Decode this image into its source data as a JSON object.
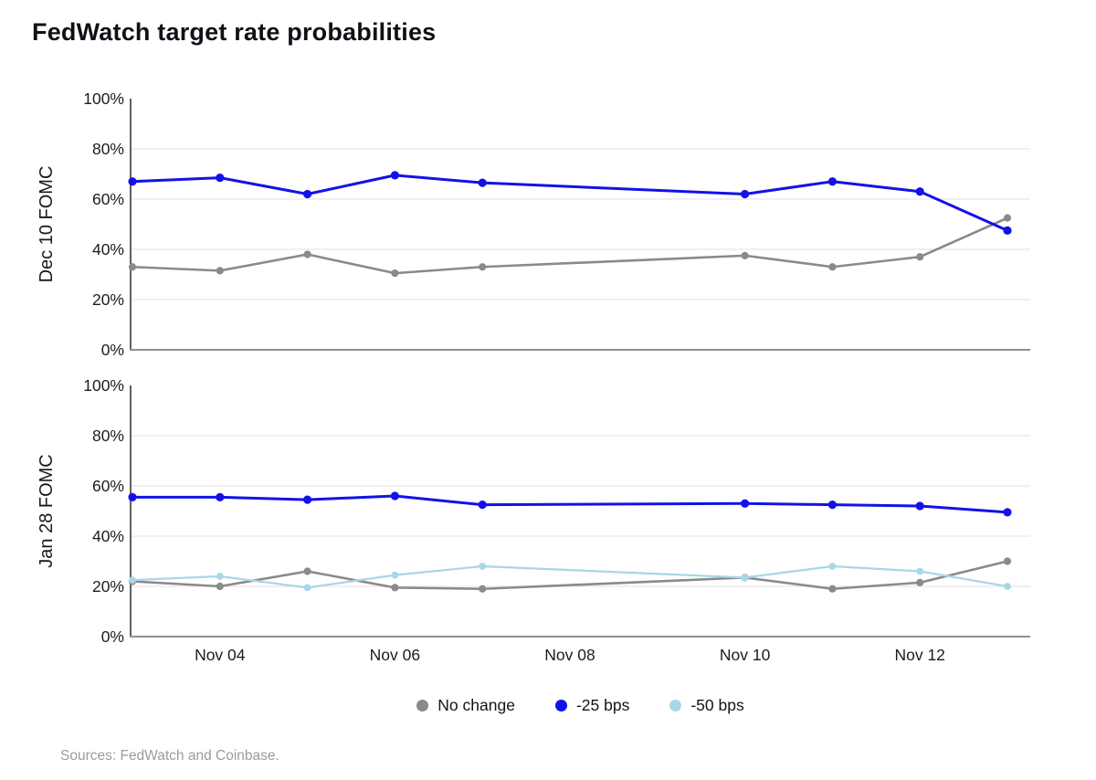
{
  "title": "FedWatch target rate probabilities",
  "source": "Sources: FedWatch and Coinbase.",
  "colors": {
    "no_change": "#8a8a8a",
    "minus_25bps": "#1212e8",
    "minus_50bps": "#a9d6e8",
    "grid": "#e8e8e8",
    "x_axis_line": "#8f8f8f",
    "y_axis_line": "#616161",
    "tick_text": "#1c1c1c",
    "title_text": "#0e1117",
    "source_text": "#9b9b9b"
  },
  "legend": {
    "items": [
      {
        "id": "no-change",
        "label": "No change",
        "color": "#8a8a8a"
      },
      {
        "id": "minus-25bps",
        "label": "-25 bps",
        "color": "#1212e8"
      },
      {
        "id": "minus-50bps",
        "label": "-50 bps",
        "color": "#a9d6e8"
      }
    ]
  },
  "x_axis": {
    "tick_labels": [
      "Nov 04",
      "Nov 06",
      "Nov 08",
      "Nov 10",
      "Nov 12"
    ],
    "tick_day_offsets": [
      1,
      3,
      5,
      7,
      9
    ]
  },
  "chart_data": [
    {
      "type": "line",
      "panel_id": "dec10-fomc",
      "panel_label": "Dec 10 FOMC",
      "x_dates": [
        "Nov 03",
        "Nov 04",
        "Nov 05",
        "Nov 06",
        "Nov 07",
        "Nov 10",
        "Nov 11",
        "Nov 12",
        "Nov 13"
      ],
      "x_day_offsets": [
        0,
        1,
        2,
        3,
        4,
        7,
        8,
        9,
        10
      ],
      "ylim": [
        0,
        100
      ],
      "yticks": [
        "0%",
        "20%",
        "40%",
        "60%",
        "80%",
        "100%"
      ],
      "grid": true,
      "series": [
        {
          "name": "No change",
          "color": "#8a8a8a",
          "values": [
            33,
            31.5,
            38,
            30.5,
            33,
            37.5,
            33,
            37,
            52.5
          ]
        },
        {
          "name": "-25 bps",
          "color": "#1212e8",
          "values": [
            67,
            68.5,
            62,
            69.5,
            66.5,
            62,
            67,
            63,
            47.5
          ]
        }
      ]
    },
    {
      "type": "line",
      "panel_id": "jan28-fomc",
      "panel_label": "Jan 28 FOMC",
      "x_dates": [
        "Nov 03",
        "Nov 04",
        "Nov 05",
        "Nov 06",
        "Nov 07",
        "Nov 10",
        "Nov 11",
        "Nov 12",
        "Nov 13"
      ],
      "x_day_offsets": [
        0,
        1,
        2,
        3,
        4,
        7,
        8,
        9,
        10
      ],
      "ylim": [
        0,
        100
      ],
      "yticks": [
        "0%",
        "20%",
        "40%",
        "60%",
        "80%",
        "100%"
      ],
      "grid": true,
      "series": [
        {
          "name": "No change",
          "color": "#8a8a8a",
          "values": [
            22,
            20,
            26,
            19.5,
            19,
            23.5,
            19,
            21.5,
            30
          ]
        },
        {
          "name": "-25 bps",
          "color": "#1212e8",
          "values": [
            55.5,
            55.5,
            54.5,
            56,
            52.5,
            53,
            52.5,
            52,
            49.5
          ]
        },
        {
          "name": "-50 bps",
          "color": "#a9d6e8",
          "values": [
            22.5,
            24,
            19.5,
            24.5,
            28,
            23.5,
            28,
            26,
            20
          ]
        }
      ]
    }
  ]
}
